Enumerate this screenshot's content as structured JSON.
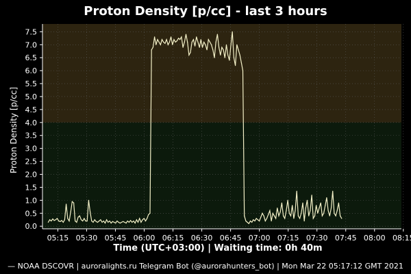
{
  "colors": {
    "background": "#000000",
    "zone_high": "#2d2410",
    "zone_low": "#0c1a0c",
    "line": "#f4f1c8",
    "grid": "#5a5a5a",
    "axis": "#ffffff"
  },
  "chart_data": {
    "type": "line",
    "title": "Proton Density [p/cc] - last 3 hours",
    "xlabel": "Time (UTC+03:00) | Waiting time: 0h 40m",
    "ylabel": "Proton Density [p/cc]",
    "footer": "— NOAA DSCOVR | auroralights.ru Telegram Bot (@aurorahunters_bot) | Mon Mar 22 05:17:12 GMT 2021",
    "ylim": [
      -0.1,
      7.8
    ],
    "xlim_minutes": [
      -8,
      179
    ],
    "yticks": [
      "0.0",
      "0.5",
      "1.0",
      "1.5",
      "2.0",
      "2.5",
      "3.0",
      "3.5",
      "4.0",
      "4.5",
      "5.0",
      "5.5",
      "6.0",
      "6.5",
      "7.0",
      "7.5"
    ],
    "xticks": [
      "05:15",
      "05:30",
      "05:45",
      "06:00",
      "06:15",
      "06:30",
      "06:45",
      "07:00",
      "07:15",
      "07:30",
      "07:45",
      "08:00",
      "08:15"
    ],
    "threshold_band": {
      "from": 4.0,
      "to": 7.8
    },
    "grid": true,
    "series": [
      {
        "values": [
          0.15,
          0.25,
          0.2,
          0.28,
          0.22,
          0.25,
          0.3,
          0.2,
          0.18,
          0.22,
          0.15,
          0.25,
          0.85,
          0.3,
          0.2,
          0.55,
          0.95,
          0.9,
          0.2,
          0.15,
          0.35,
          0.4,
          0.25,
          0.2,
          0.3,
          0.2,
          0.2,
          1.0,
          0.55,
          0.2,
          0.15,
          0.25,
          0.18,
          0.15,
          0.2,
          0.25,
          0.15,
          0.2,
          0.12,
          0.25,
          0.15,
          0.2,
          0.12,
          0.18,
          0.15,
          0.12,
          0.2,
          0.15,
          0.12,
          0.15,
          0.18,
          0.15,
          0.12,
          0.2,
          0.15,
          0.22,
          0.15,
          0.2,
          0.12,
          0.25,
          0.15,
          0.3,
          0.15,
          0.25,
          0.3,
          0.2,
          0.3,
          0.45,
          0.5,
          6.8,
          6.9,
          7.3,
          7.0,
          7.2,
          7.1,
          7.0,
          7.2,
          7.1,
          7.05,
          7.2,
          7.0,
          7.1,
          7.3,
          7.0,
          7.2,
          7.1,
          7.15,
          7.25,
          7.2,
          7.3,
          6.9,
          7.1,
          7.4,
          7.1,
          6.6,
          6.7,
          7.1,
          7.2,
          6.95,
          7.3,
          7.1,
          6.9,
          7.2,
          6.9,
          7.1,
          7.0,
          6.8,
          7.2,
          7.1,
          7.0,
          6.8,
          6.5,
          7.1,
          7.4,
          6.9,
          6.6,
          6.9,
          6.8,
          6.5,
          7.0,
          6.6,
          6.4,
          7.0,
          7.5,
          6.5,
          6.2,
          7.0,
          6.8,
          6.6,
          6.3,
          6.0,
          0.4,
          0.2,
          0.15,
          0.1,
          0.2,
          0.15,
          0.25,
          0.2,
          0.3,
          0.25,
          0.2,
          0.35,
          0.5,
          0.4,
          0.2,
          0.3,
          0.45,
          0.6,
          0.2,
          0.5,
          0.4,
          0.3,
          0.7,
          0.4,
          0.55,
          0.9,
          0.4,
          0.3,
          0.6,
          1.0,
          0.5,
          0.4,
          0.8,
          0.3,
          0.6,
          1.35,
          0.4,
          0.3,
          0.5,
          0.9,
          0.2,
          0.7,
          1.0,
          0.4,
          0.6,
          1.2,
          0.3,
          0.4,
          0.8,
          0.5,
          0.7,
          0.9,
          0.4,
          0.5,
          0.8,
          1.1,
          0.6,
          0.4,
          0.7,
          1.35,
          0.5,
          0.4,
          0.6,
          0.9,
          0.4,
          0.3
        ],
        "x_step_minutes": 0.78,
        "x_start_minutes": -5
      }
    ]
  }
}
